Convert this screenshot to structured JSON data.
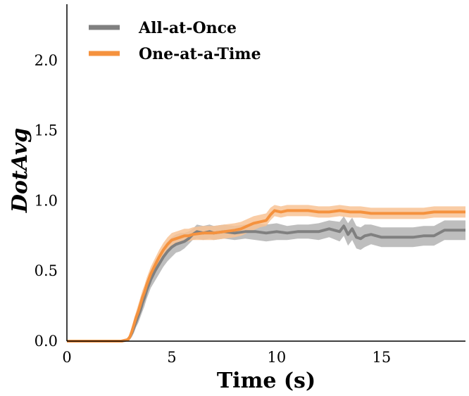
{
  "chart_data": {
    "type": "line",
    "xlabel": "Time (s)",
    "ylabel": "DotAvg",
    "xlim": [
      0,
      19
    ],
    "ylim": [
      0,
      2.4
    ],
    "x_ticks": [
      0,
      5,
      10,
      15
    ],
    "y_ticks": [
      0.0,
      0.5,
      1.0,
      1.5,
      2.0
    ],
    "x_tick_labels": [
      "0",
      "5",
      "10",
      "15"
    ],
    "y_tick_labels": [
      "0.0",
      "0.5",
      "1.0",
      "1.5",
      "2.0"
    ],
    "grid": false,
    "legend_position": "top-left",
    "series": [
      {
        "name": "All-at-Once",
        "color": "#808080",
        "band_color": "#b3b3b3",
        "x": [
          0,
          2.6,
          2.9,
          3.0,
          3.1,
          3.2,
          3.3,
          3.4,
          3.5,
          3.6,
          3.7,
          3.8,
          3.9,
          4.0,
          4.2,
          4.4,
          4.6,
          4.8,
          5.0,
          5.2,
          5.4,
          5.6,
          5.8,
          6.0,
          6.2,
          6.5,
          6.8,
          7.0,
          7.5,
          8.0,
          8.5,
          9.0,
          9.5,
          10.0,
          10.5,
          11.0,
          11.5,
          12.0,
          12.5,
          13.0,
          13.2,
          13.4,
          13.6,
          13.8,
          14.0,
          14.2,
          14.5,
          15.0,
          15.5,
          16.0,
          16.5,
          17.0,
          17.5,
          18.0,
          18.5,
          19.0
        ],
        "values": [
          0.0,
          0.0,
          0.01,
          0.03,
          0.06,
          0.1,
          0.14,
          0.18,
          0.22,
          0.27,
          0.31,
          0.36,
          0.4,
          0.44,
          0.5,
          0.55,
          0.6,
          0.64,
          0.67,
          0.69,
          0.7,
          0.71,
          0.73,
          0.76,
          0.78,
          0.77,
          0.78,
          0.77,
          0.78,
          0.77,
          0.78,
          0.78,
          0.77,
          0.78,
          0.77,
          0.78,
          0.78,
          0.78,
          0.8,
          0.78,
          0.82,
          0.76,
          0.8,
          0.74,
          0.73,
          0.75,
          0.76,
          0.74,
          0.74,
          0.74,
          0.74,
          0.75,
          0.75,
          0.79,
          0.79,
          0.79
        ],
        "lower": [
          0.0,
          0.0,
          0.0,
          0.01,
          0.03,
          0.06,
          0.1,
          0.13,
          0.17,
          0.21,
          0.25,
          0.3,
          0.34,
          0.38,
          0.43,
          0.48,
          0.53,
          0.57,
          0.6,
          0.63,
          0.64,
          0.66,
          0.69,
          0.72,
          0.73,
          0.72,
          0.73,
          0.72,
          0.73,
          0.72,
          0.73,
          0.72,
          0.71,
          0.72,
          0.72,
          0.73,
          0.73,
          0.72,
          0.74,
          0.71,
          0.75,
          0.68,
          0.72,
          0.66,
          0.65,
          0.67,
          0.69,
          0.67,
          0.67,
          0.67,
          0.67,
          0.68,
          0.68,
          0.72,
          0.72,
          0.72
        ],
        "upper": [
          0.0,
          0.0,
          0.02,
          0.05,
          0.09,
          0.14,
          0.18,
          0.23,
          0.27,
          0.32,
          0.37,
          0.42,
          0.46,
          0.5,
          0.57,
          0.62,
          0.67,
          0.71,
          0.74,
          0.76,
          0.77,
          0.77,
          0.78,
          0.8,
          0.83,
          0.82,
          0.83,
          0.82,
          0.83,
          0.82,
          0.83,
          0.84,
          0.83,
          0.84,
          0.82,
          0.83,
          0.83,
          0.84,
          0.86,
          0.85,
          0.89,
          0.84,
          0.88,
          0.82,
          0.81,
          0.83,
          0.83,
          0.81,
          0.81,
          0.81,
          0.81,
          0.82,
          0.82,
          0.86,
          0.86,
          0.86
        ]
      },
      {
        "name": "One-at-a-Time",
        "color": "#f5923e",
        "band_color": "#f8c395",
        "x": [
          0,
          2.6,
          2.9,
          3.0,
          3.1,
          3.2,
          3.3,
          3.4,
          3.5,
          3.6,
          3.7,
          3.8,
          3.9,
          4.0,
          4.2,
          4.4,
          4.6,
          4.8,
          5.0,
          5.2,
          5.4,
          5.6,
          5.8,
          6.0,
          6.5,
          7.0,
          7.5,
          8.0,
          8.3,
          8.6,
          8.9,
          9.2,
          9.5,
          9.7,
          9.9,
          10.2,
          10.5,
          11.0,
          11.5,
          12.0,
          12.5,
          13.0,
          13.5,
          14.0,
          14.5,
          15.0,
          15.5,
          16.0,
          16.5,
          17.0,
          17.5,
          18.0,
          18.5,
          19.0
        ],
        "values": [
          0.0,
          0.0,
          0.01,
          0.03,
          0.07,
          0.12,
          0.17,
          0.21,
          0.26,
          0.31,
          0.35,
          0.4,
          0.44,
          0.48,
          0.54,
          0.6,
          0.65,
          0.69,
          0.72,
          0.73,
          0.74,
          0.75,
          0.75,
          0.76,
          0.77,
          0.77,
          0.78,
          0.79,
          0.8,
          0.82,
          0.84,
          0.85,
          0.86,
          0.9,
          0.93,
          0.92,
          0.93,
          0.93,
          0.93,
          0.92,
          0.92,
          0.93,
          0.92,
          0.92,
          0.91,
          0.91,
          0.91,
          0.91,
          0.91,
          0.91,
          0.92,
          0.92,
          0.92,
          0.92
        ],
        "lower": [
          0.0,
          0.0,
          0.0,
          0.01,
          0.04,
          0.08,
          0.13,
          0.16,
          0.21,
          0.26,
          0.3,
          0.35,
          0.39,
          0.43,
          0.49,
          0.55,
          0.6,
          0.64,
          0.67,
          0.69,
          0.7,
          0.71,
          0.71,
          0.72,
          0.72,
          0.72,
          0.73,
          0.74,
          0.75,
          0.77,
          0.79,
          0.81,
          0.82,
          0.86,
          0.89,
          0.88,
          0.89,
          0.89,
          0.89,
          0.88,
          0.88,
          0.89,
          0.88,
          0.88,
          0.87,
          0.87,
          0.87,
          0.87,
          0.87,
          0.87,
          0.88,
          0.88,
          0.88,
          0.88
        ],
        "upper": [
          0.0,
          0.0,
          0.02,
          0.05,
          0.1,
          0.16,
          0.21,
          0.26,
          0.31,
          0.36,
          0.4,
          0.45,
          0.49,
          0.53,
          0.59,
          0.65,
          0.7,
          0.74,
          0.77,
          0.78,
          0.79,
          0.8,
          0.8,
          0.81,
          0.82,
          0.82,
          0.83,
          0.84,
          0.85,
          0.87,
          0.89,
          0.9,
          0.91,
          0.95,
          0.97,
          0.96,
          0.97,
          0.97,
          0.97,
          0.96,
          0.96,
          0.97,
          0.96,
          0.96,
          0.95,
          0.95,
          0.95,
          0.95,
          0.95,
          0.95,
          0.96,
          0.96,
          0.96,
          0.96
        ]
      }
    ]
  }
}
